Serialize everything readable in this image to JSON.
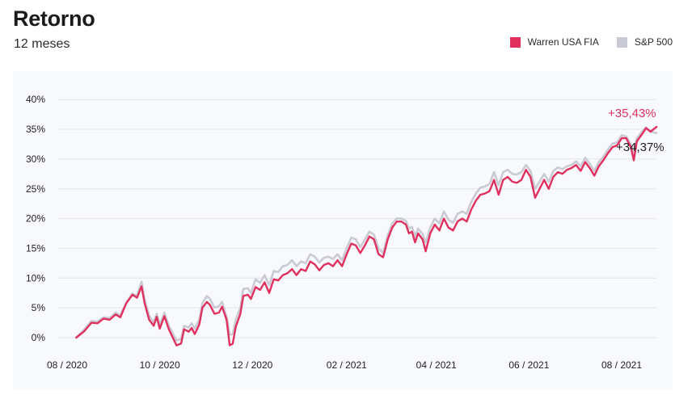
{
  "header": {
    "title": "Retorno",
    "subtitle": "12 meses"
  },
  "legend": [
    {
      "label": "Warren USA FIA",
      "color": "#e0305e"
    },
    {
      "label": "S&P 500",
      "color": "#c9cad3"
    }
  ],
  "chart_data": {
    "type": "line",
    "title": "Retorno",
    "subtitle": "12 meses",
    "xlabel": "",
    "ylabel": "",
    "ylim": [
      -1.5,
      40
    ],
    "yticks": [
      0,
      5,
      10,
      15,
      20,
      25,
      30,
      35,
      40
    ],
    "ytick_labels": [
      "0%",
      "5%",
      "10%",
      "15%",
      "20%",
      "25%",
      "30%",
      "35%",
      "40%"
    ],
    "xticks": [
      {
        "date": "2020-08-01",
        "label": "08 / 2020"
      },
      {
        "date": "2020-10-01",
        "label": "10 / 2020"
      },
      {
        "date": "2020-12-01",
        "label": "12 / 2020"
      },
      {
        "date": "2021-02-01",
        "label": "02 / 2021"
      },
      {
        "date": "2021-04-01",
        "label": "04 / 2021"
      },
      {
        "date": "2021-06-01",
        "label": "06 / 2021"
      },
      {
        "date": "2021-08-01",
        "label": "08 / 2021"
      }
    ],
    "grid": true,
    "legend_position": "top-right",
    "series": [
      {
        "name": "Warren USA FIA",
        "color": "#e0305e",
        "end_label": "+35,43%",
        "points": [
          [
            "2020-08-07",
            0.0
          ],
          [
            "2020-08-12",
            1.0
          ],
          [
            "2020-08-17",
            2.5
          ],
          [
            "2020-08-21",
            2.4
          ],
          [
            "2020-08-25",
            3.2
          ],
          [
            "2020-08-29",
            3.0
          ],
          [
            "2020-09-02",
            3.9
          ],
          [
            "2020-09-05",
            3.4
          ],
          [
            "2020-09-09",
            5.8
          ],
          [
            "2020-09-13",
            7.2
          ],
          [
            "2020-09-16",
            6.7
          ],
          [
            "2020-09-19",
            8.6
          ],
          [
            "2020-09-21",
            5.8
          ],
          [
            "2020-09-24",
            3.0
          ],
          [
            "2020-09-27",
            2.0
          ],
          [
            "2020-09-29",
            3.5
          ],
          [
            "2020-10-01",
            1.5
          ],
          [
            "2020-10-04",
            3.6
          ],
          [
            "2020-10-07",
            1.4
          ],
          [
            "2020-10-09",
            0.3
          ],
          [
            "2020-10-12",
            -1.3
          ],
          [
            "2020-10-15",
            -1.0
          ],
          [
            "2020-10-17",
            1.4
          ],
          [
            "2020-10-20",
            1.0
          ],
          [
            "2020-10-22",
            1.6
          ],
          [
            "2020-10-24",
            0.6
          ],
          [
            "2020-10-27",
            2.2
          ],
          [
            "2020-10-29",
            5.0
          ],
          [
            "2020-11-01",
            6.0
          ],
          [
            "2020-11-03",
            5.5
          ],
          [
            "2020-11-06",
            4.0
          ],
          [
            "2020-11-09",
            4.2
          ],
          [
            "2020-11-11",
            5.2
          ],
          [
            "2020-11-14",
            3.0
          ],
          [
            "2020-11-16",
            -1.3
          ],
          [
            "2020-11-18",
            -1.0
          ],
          [
            "2020-11-20",
            1.8
          ],
          [
            "2020-11-23",
            4.0
          ],
          [
            "2020-11-25",
            7.0
          ],
          [
            "2020-11-28",
            7.2
          ],
          [
            "2020-11-30",
            6.5
          ],
          [
            "2020-12-03",
            8.5
          ],
          [
            "2020-12-06",
            8.0
          ],
          [
            "2020-12-09",
            9.3
          ],
          [
            "2020-12-12",
            7.5
          ],
          [
            "2020-12-15",
            9.8
          ],
          [
            "2020-12-18",
            9.6
          ],
          [
            "2020-12-21",
            10.5
          ],
          [
            "2020-12-24",
            10.8
          ],
          [
            "2020-12-27",
            11.5
          ],
          [
            "2020-12-30",
            10.5
          ],
          [
            "2021-01-02",
            11.5
          ],
          [
            "2021-01-05",
            11.2
          ],
          [
            "2021-01-08",
            12.8
          ],
          [
            "2021-01-11",
            12.3
          ],
          [
            "2021-01-14",
            11.3
          ],
          [
            "2021-01-17",
            12.2
          ],
          [
            "2021-01-20",
            12.5
          ],
          [
            "2021-01-23",
            12.0
          ],
          [
            "2021-01-26",
            13.0
          ],
          [
            "2021-01-29",
            12.0
          ],
          [
            "2021-02-01",
            14.0
          ],
          [
            "2021-02-04",
            15.8
          ],
          [
            "2021-02-07",
            15.5
          ],
          [
            "2021-02-10",
            14.2
          ],
          [
            "2021-02-13",
            15.5
          ],
          [
            "2021-02-16",
            17.0
          ],
          [
            "2021-02-19",
            16.5
          ],
          [
            "2021-02-22",
            14.0
          ],
          [
            "2021-02-25",
            13.5
          ],
          [
            "2021-02-28",
            16.5
          ],
          [
            "2021-03-03",
            18.5
          ],
          [
            "2021-03-06",
            19.5
          ],
          [
            "2021-03-09",
            19.5
          ],
          [
            "2021-03-12",
            19.0
          ],
          [
            "2021-03-14",
            17.5
          ],
          [
            "2021-03-16",
            17.8
          ],
          [
            "2021-03-18",
            16.0
          ],
          [
            "2021-03-20",
            17.5
          ],
          [
            "2021-03-23",
            16.5
          ],
          [
            "2021-03-25",
            14.5
          ],
          [
            "2021-03-28",
            17.5
          ],
          [
            "2021-03-31",
            19.0
          ],
          [
            "2021-04-03",
            18.0
          ],
          [
            "2021-04-06",
            20.0
          ],
          [
            "2021-04-09",
            18.5
          ],
          [
            "2021-04-12",
            18.0
          ],
          [
            "2021-04-15",
            19.5
          ],
          [
            "2021-04-18",
            20.0
          ],
          [
            "2021-04-21",
            19.5
          ],
          [
            "2021-04-24",
            21.5
          ],
          [
            "2021-04-27",
            23.0
          ],
          [
            "2021-04-30",
            24.0
          ],
          [
            "2021-05-03",
            24.2
          ],
          [
            "2021-05-06",
            24.6
          ],
          [
            "2021-05-09",
            26.5
          ],
          [
            "2021-05-12",
            24.0
          ],
          [
            "2021-05-15",
            26.5
          ],
          [
            "2021-05-18",
            27.0
          ],
          [
            "2021-05-21",
            26.2
          ],
          [
            "2021-05-24",
            26.0
          ],
          [
            "2021-05-27",
            26.5
          ],
          [
            "2021-05-30",
            28.2
          ],
          [
            "2021-06-02",
            27.0
          ],
          [
            "2021-06-05",
            23.5
          ],
          [
            "2021-06-08",
            25.0
          ],
          [
            "2021-06-11",
            26.5
          ],
          [
            "2021-06-14",
            25.0
          ],
          [
            "2021-06-17",
            27.0
          ],
          [
            "2021-06-20",
            27.8
          ],
          [
            "2021-06-23",
            27.5
          ],
          [
            "2021-06-26",
            28.2
          ],
          [
            "2021-06-29",
            28.5
          ],
          [
            "2021-07-02",
            29.0
          ],
          [
            "2021-07-05",
            28.0
          ],
          [
            "2021-07-08",
            29.5
          ],
          [
            "2021-07-11",
            28.5
          ],
          [
            "2021-07-14",
            27.2
          ],
          [
            "2021-07-17",
            28.8
          ],
          [
            "2021-07-20",
            29.8
          ],
          [
            "2021-07-23",
            31.0
          ],
          [
            "2021-07-26",
            32.0
          ],
          [
            "2021-07-29",
            32.3
          ],
          [
            "2021-08-01",
            33.5
          ],
          [
            "2021-08-04",
            33.5
          ],
          [
            "2021-08-07",
            32.0
          ],
          [
            "2021-08-09",
            29.8
          ],
          [
            "2021-08-11",
            33.0
          ],
          [
            "2021-08-14",
            34.0
          ],
          [
            "2021-08-17",
            35.2
          ],
          [
            "2021-08-20",
            34.6
          ],
          [
            "2021-08-24",
            35.4
          ]
        ]
      },
      {
        "name": "S&P 500",
        "color": "#c9cad3",
        "end_label": "+34,37%",
        "points": [
          [
            "2020-08-07",
            0.0
          ],
          [
            "2020-08-12",
            1.3
          ],
          [
            "2020-08-17",
            2.8
          ],
          [
            "2020-08-21",
            2.7
          ],
          [
            "2020-08-25",
            3.4
          ],
          [
            "2020-08-29",
            3.3
          ],
          [
            "2020-09-02",
            4.2
          ],
          [
            "2020-09-05",
            3.7
          ],
          [
            "2020-09-09",
            5.9
          ],
          [
            "2020-09-13",
            7.4
          ],
          [
            "2020-09-16",
            7.0
          ],
          [
            "2020-09-19",
            9.4
          ],
          [
            "2020-09-21",
            6.4
          ],
          [
            "2020-09-24",
            3.7
          ],
          [
            "2020-09-27",
            2.6
          ],
          [
            "2020-09-29",
            4.0
          ],
          [
            "2020-10-01",
            2.2
          ],
          [
            "2020-10-04",
            4.2
          ],
          [
            "2020-10-07",
            2.0
          ],
          [
            "2020-10-09",
            1.0
          ],
          [
            "2020-10-12",
            -0.5
          ],
          [
            "2020-10-15",
            -0.2
          ],
          [
            "2020-10-17",
            2.0
          ],
          [
            "2020-10-20",
            1.7
          ],
          [
            "2020-10-22",
            2.4
          ],
          [
            "2020-10-24",
            1.5
          ],
          [
            "2020-10-27",
            3.0
          ],
          [
            "2020-10-29",
            5.8
          ],
          [
            "2020-11-01",
            7.0
          ],
          [
            "2020-11-03",
            6.5
          ],
          [
            "2020-11-06",
            5.0
          ],
          [
            "2020-11-09",
            5.3
          ],
          [
            "2020-11-11",
            6.0
          ],
          [
            "2020-11-14",
            3.5
          ],
          [
            "2020-11-16",
            0.5
          ],
          [
            "2020-11-18",
            0.6
          ],
          [
            "2020-11-20",
            3.0
          ],
          [
            "2020-11-23",
            5.0
          ],
          [
            "2020-11-25",
            8.2
          ],
          [
            "2020-11-28",
            8.3
          ],
          [
            "2020-11-30",
            7.5
          ],
          [
            "2020-12-03",
            9.8
          ],
          [
            "2020-12-06",
            9.2
          ],
          [
            "2020-12-09",
            10.5
          ],
          [
            "2020-12-12",
            8.8
          ],
          [
            "2020-12-15",
            11.2
          ],
          [
            "2020-12-18",
            11.0
          ],
          [
            "2020-12-21",
            12.0
          ],
          [
            "2020-12-24",
            12.2
          ],
          [
            "2020-12-27",
            13.0
          ],
          [
            "2020-12-30",
            12.0
          ],
          [
            "2021-01-02",
            12.8
          ],
          [
            "2021-01-05",
            12.5
          ],
          [
            "2021-01-08",
            14.0
          ],
          [
            "2021-01-11",
            13.6
          ],
          [
            "2021-01-14",
            12.6
          ],
          [
            "2021-01-17",
            13.4
          ],
          [
            "2021-01-20",
            13.6
          ],
          [
            "2021-01-23",
            13.2
          ],
          [
            "2021-01-26",
            14.0
          ],
          [
            "2021-01-29",
            13.0
          ],
          [
            "2021-02-01",
            15.0
          ],
          [
            "2021-02-04",
            16.8
          ],
          [
            "2021-02-07",
            16.5
          ],
          [
            "2021-02-10",
            15.2
          ],
          [
            "2021-02-13",
            16.5
          ],
          [
            "2021-02-16",
            17.8
          ],
          [
            "2021-02-19",
            17.3
          ],
          [
            "2021-02-22",
            15.0
          ],
          [
            "2021-02-25",
            14.2
          ],
          [
            "2021-02-28",
            17.2
          ],
          [
            "2021-03-03",
            19.2
          ],
          [
            "2021-03-06",
            20.0
          ],
          [
            "2021-03-09",
            20.0
          ],
          [
            "2021-03-12",
            19.6
          ],
          [
            "2021-03-14",
            18.3
          ],
          [
            "2021-03-16",
            18.6
          ],
          [
            "2021-03-18",
            17.0
          ],
          [
            "2021-03-20",
            18.3
          ],
          [
            "2021-03-23",
            17.4
          ],
          [
            "2021-03-25",
            16.0
          ],
          [
            "2021-03-28",
            18.5
          ],
          [
            "2021-03-31",
            20.0
          ],
          [
            "2021-04-03",
            19.2
          ],
          [
            "2021-04-06",
            21.2
          ],
          [
            "2021-04-09",
            19.8
          ],
          [
            "2021-04-12",
            19.3
          ],
          [
            "2021-04-15",
            20.8
          ],
          [
            "2021-04-18",
            21.2
          ],
          [
            "2021-04-21",
            20.8
          ],
          [
            "2021-04-24",
            22.8
          ],
          [
            "2021-04-27",
            24.2
          ],
          [
            "2021-04-30",
            25.2
          ],
          [
            "2021-05-03",
            25.4
          ],
          [
            "2021-05-06",
            25.8
          ],
          [
            "2021-05-09",
            27.8
          ],
          [
            "2021-05-12",
            25.6
          ],
          [
            "2021-05-15",
            27.8
          ],
          [
            "2021-05-18",
            28.2
          ],
          [
            "2021-05-21",
            27.5
          ],
          [
            "2021-05-24",
            27.4
          ],
          [
            "2021-05-27",
            27.8
          ],
          [
            "2021-05-30",
            29.0
          ],
          [
            "2021-06-02",
            28.0
          ],
          [
            "2021-06-05",
            25.0
          ],
          [
            "2021-06-08",
            26.2
          ],
          [
            "2021-06-11",
            27.5
          ],
          [
            "2021-06-14",
            26.2
          ],
          [
            "2021-06-17",
            28.0
          ],
          [
            "2021-06-20",
            28.6
          ],
          [
            "2021-06-23",
            28.3
          ],
          [
            "2021-06-26",
            28.8
          ],
          [
            "2021-06-29",
            29.0
          ],
          [
            "2021-07-02",
            29.6
          ],
          [
            "2021-07-05",
            28.8
          ],
          [
            "2021-07-08",
            30.2
          ],
          [
            "2021-07-11",
            29.2
          ],
          [
            "2021-07-14",
            28.0
          ],
          [
            "2021-07-17",
            29.5
          ],
          [
            "2021-07-20",
            30.4
          ],
          [
            "2021-07-23",
            31.6
          ],
          [
            "2021-07-26",
            32.6
          ],
          [
            "2021-07-29",
            32.8
          ],
          [
            "2021-08-01",
            34.0
          ],
          [
            "2021-08-04",
            33.8
          ],
          [
            "2021-08-07",
            32.5
          ],
          [
            "2021-08-09",
            31.0
          ],
          [
            "2021-08-11",
            33.5
          ],
          [
            "2021-08-14",
            34.5
          ],
          [
            "2021-08-17",
            35.3
          ],
          [
            "2021-08-20",
            34.6
          ],
          [
            "2021-08-24",
            34.37
          ]
        ]
      }
    ]
  }
}
